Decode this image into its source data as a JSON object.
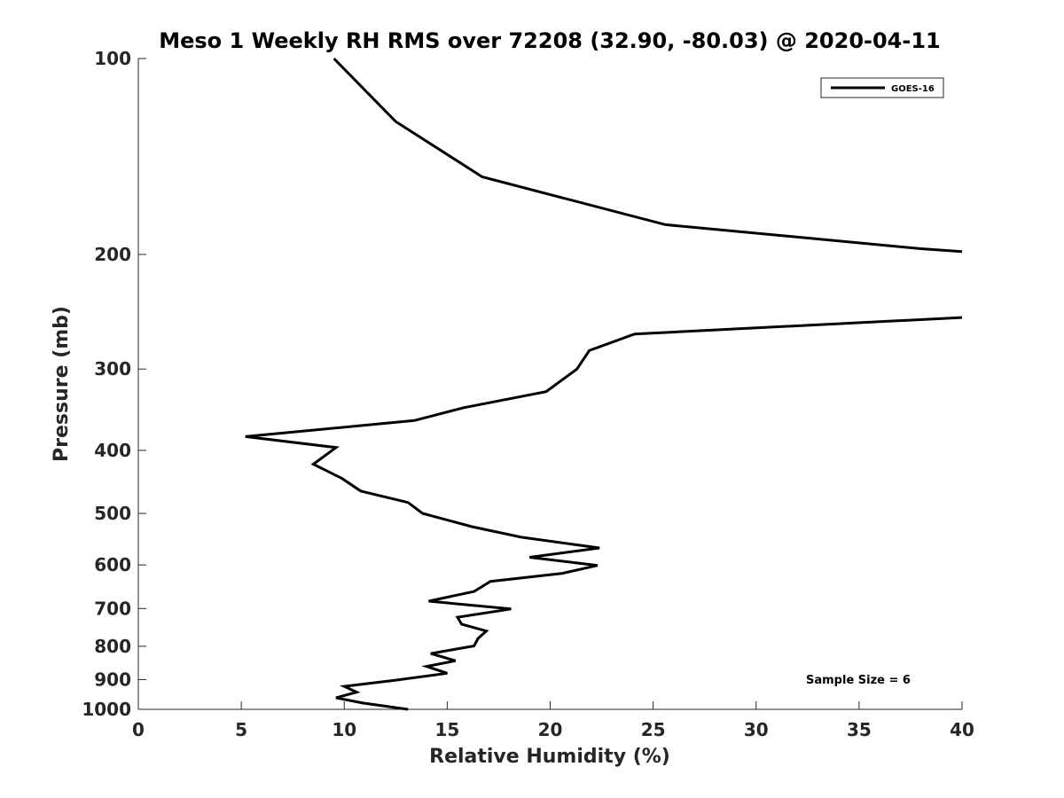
{
  "chart_data": {
    "type": "line",
    "title": "Meso 1 Weekly RH RMS over 72208 (32.90, -80.03) @ 2020-04-11",
    "xlabel": "Relative Humidity (%)",
    "ylabel": "Pressure (mb)",
    "xlim": [
      0,
      40
    ],
    "ylim": [
      100,
      1000
    ],
    "y_scale": "log",
    "y_reversed": true,
    "grid": false,
    "legend_position": "top-right",
    "x_ticks": [
      "0",
      "5",
      "10",
      "15",
      "20",
      "25",
      "30",
      "35",
      "40"
    ],
    "y_ticks": [
      "100",
      "200",
      "300",
      "400",
      "500",
      "600",
      "700",
      "800",
      "900",
      "1000"
    ],
    "annotation": "Sample Size = 6",
    "series": [
      {
        "name": "GOES-16",
        "color": "#000000",
        "segments": [
          {
            "points": [
              [
                9.5,
                100
              ],
              [
                12.5,
                125
              ],
              [
                16.7,
                152
              ],
              [
                25.6,
                180
              ],
              [
                38,
                196
              ],
              [
                40,
                198
              ]
            ]
          },
          {
            "points": [
              [
                40,
                250
              ],
              [
                24.1,
                265
              ],
              [
                21.9,
                281
              ],
              [
                21.3,
                300
              ],
              [
                19.8,
                325
              ],
              [
                15.8,
                344
              ],
              [
                13.4,
                360
              ],
              [
                5.2,
                381
              ],
              [
                9.6,
                396
              ],
              [
                8.5,
                420
              ],
              [
                9.9,
                442
              ],
              [
                10.8,
                462
              ],
              [
                13.1,
                481
              ],
              [
                13.8,
                500
              ],
              [
                16.2,
                524
              ],
              [
                18.6,
                544
              ],
              [
                22.4,
                565
              ],
              [
                19.0,
                584
              ],
              [
                22.3,
                601
              ],
              [
                20.6,
                618
              ],
              [
                17.1,
                636
              ],
              [
                16.3,
                659
              ],
              [
                14.1,
                682
              ],
              [
                18.1,
                701
              ],
              [
                15.5,
                722
              ],
              [
                15.7,
                740
              ],
              [
                16.9,
                758
              ],
              [
                16.5,
                778
              ],
              [
                16.3,
                799
              ],
              [
                14.2,
                821
              ],
              [
                15.4,
                842
              ],
              [
                14.0,
                859
              ],
              [
                15.0,
                880
              ],
              [
                12.5,
                902
              ],
              [
                10.0,
                922
              ],
              [
                10.6,
                941
              ],
              [
                9.6,
                960
              ],
              [
                10.9,
                978
              ],
              [
                13.1,
                1000
              ]
            ]
          }
        ]
      }
    ]
  }
}
